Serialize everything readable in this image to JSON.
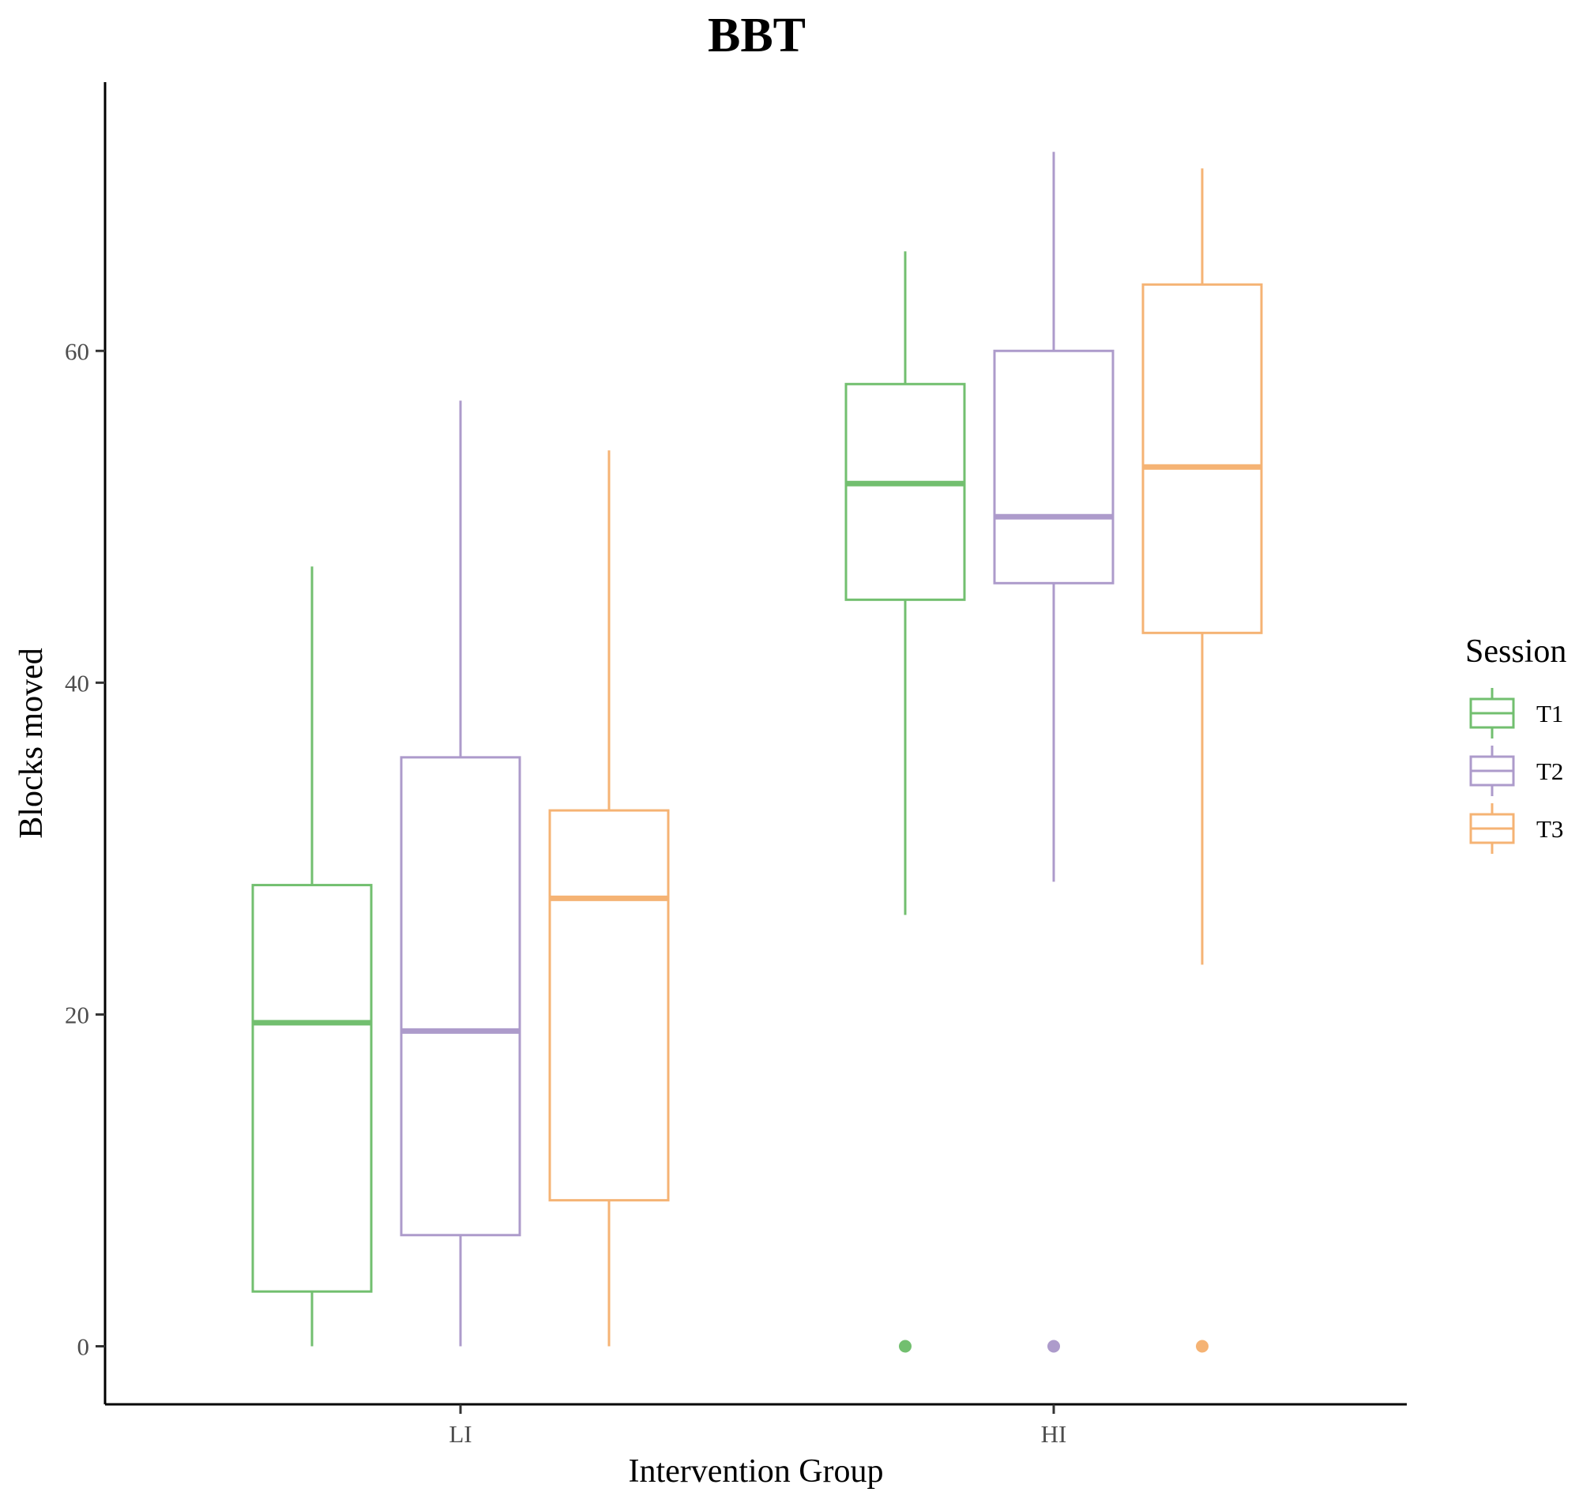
{
  "chart_data": {
    "type": "boxplot",
    "title": "BBT",
    "xlabel": "Intervention Group",
    "ylabel": "Blocks moved",
    "categories": [
      "LI",
      "HI"
    ],
    "y_ticks": [
      0,
      20,
      40,
      60
    ],
    "ylim": [
      -3.5,
      76.2
    ],
    "grid": false,
    "legend": {
      "title": "Session",
      "position": "right"
    },
    "series": [
      {
        "name": "T1",
        "color": "#72bf6f",
        "boxes": [
          {
            "whisker_low": 0,
            "q1": 3.3,
            "median": 19.5,
            "q3": 27.8,
            "whisker_high": 47,
            "outliers": []
          },
          {
            "whisker_low": 26,
            "q1": 45,
            "median": 52,
            "q3": 58,
            "whisker_high": 66,
            "outliers": [
              0
            ]
          }
        ]
      },
      {
        "name": "T2",
        "color": "#ad9bcb",
        "boxes": [
          {
            "whisker_low": 0,
            "q1": 6.7,
            "median": 19,
            "q3": 35.5,
            "whisker_high": 57,
            "outliers": []
          },
          {
            "whisker_low": 28,
            "q1": 46,
            "median": 50,
            "q3": 60,
            "whisker_high": 72,
            "outliers": [
              0
            ]
          }
        ]
      },
      {
        "name": "T3",
        "color": "#f5b374",
        "boxes": [
          {
            "whisker_low": 0,
            "q1": 8.8,
            "median": 27,
            "q3": 32.3,
            "whisker_high": 54,
            "outliers": []
          },
          {
            "whisker_low": 23,
            "q1": 43,
            "median": 53,
            "q3": 64,
            "whisker_high": 71,
            "outliers": [
              0
            ]
          }
        ]
      }
    ]
  }
}
